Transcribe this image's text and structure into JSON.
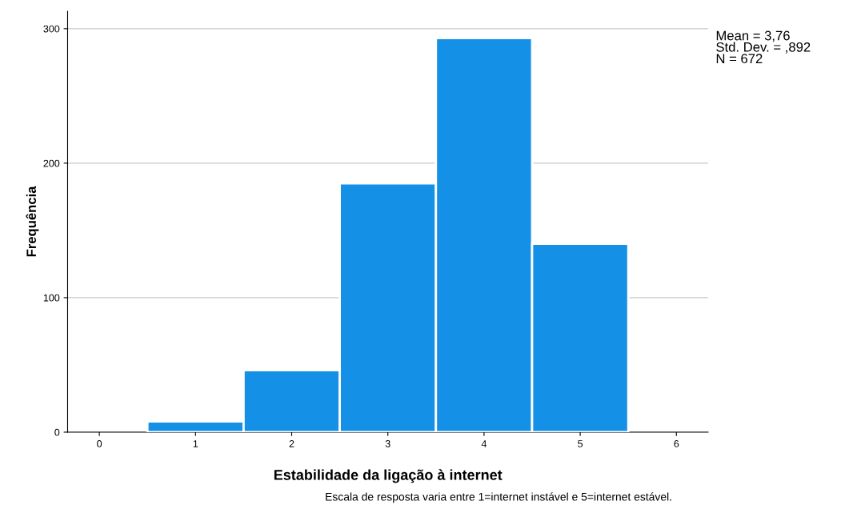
{
  "chart_data": {
    "type": "histogram",
    "xlabel": "Estabilidade da ligação à internet",
    "ylabel": "Frequência",
    "bins": [
      0.5,
      1.5,
      2.5,
      3.5,
      4.5,
      5.5
    ],
    "values": [
      8,
      46,
      185,
      293,
      140
    ],
    "color": "#1490e6",
    "xlim": [
      -0.33,
      6.33
    ],
    "xticks": [
      0,
      1,
      2,
      3,
      4,
      5,
      6
    ],
    "ylim": [
      0,
      313
    ],
    "yticks": [
      0,
      100,
      200,
      300
    ],
    "grid": "y",
    "annotations": [
      "Mean = 3,76\nStd. Dev. = ,892\nN = 672",
      "Escala de resposta varia entre 1=internet instável e 5=internet estável."
    ]
  }
}
